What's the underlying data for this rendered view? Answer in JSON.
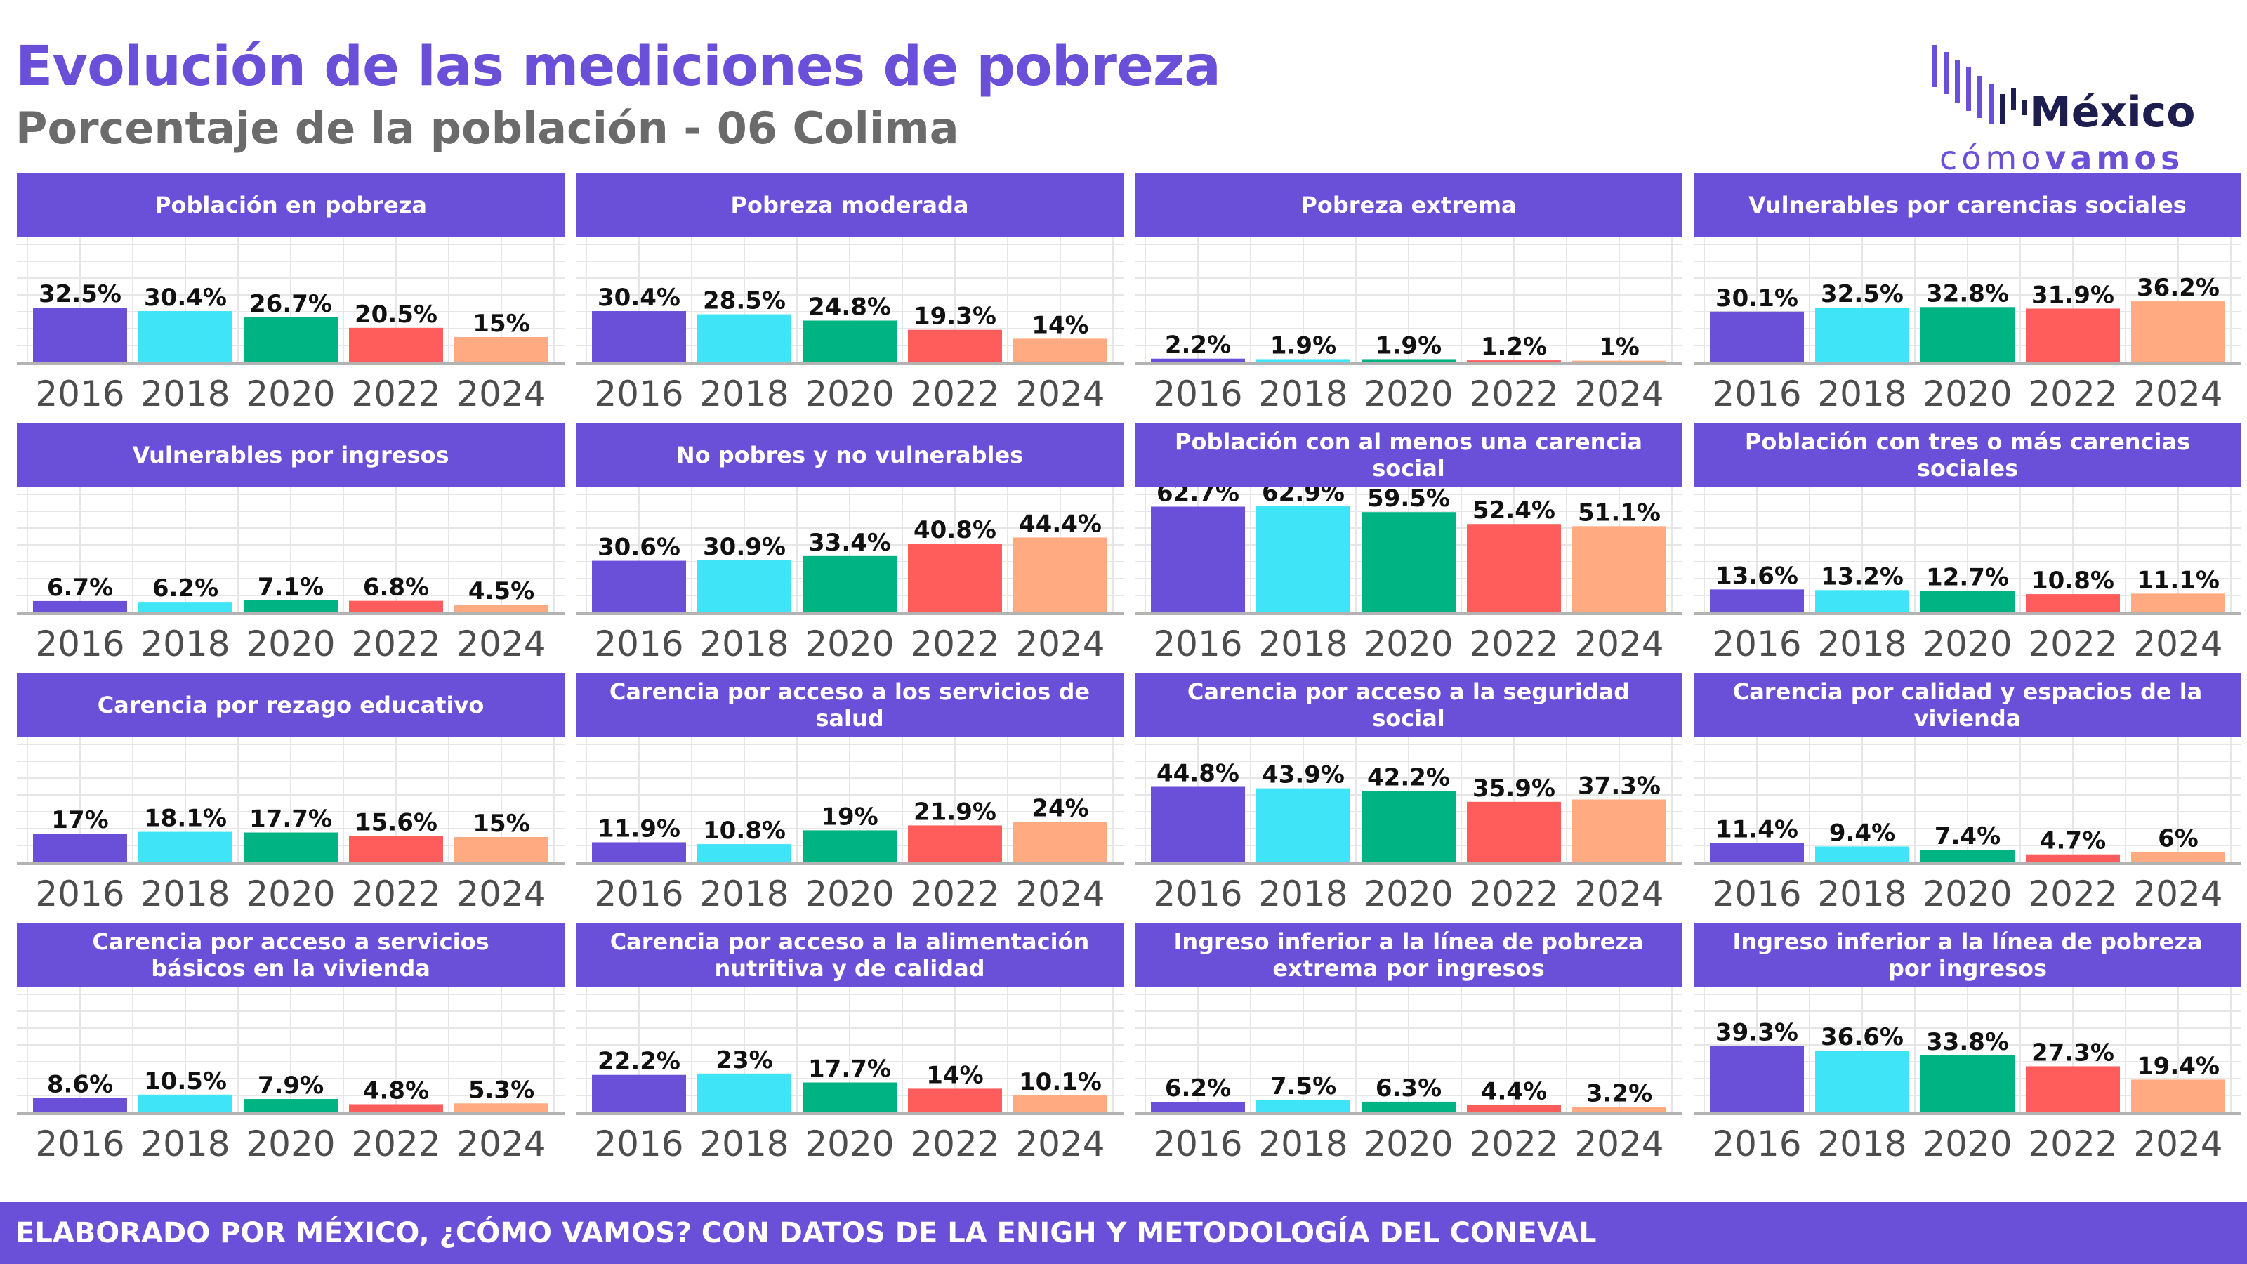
{
  "header": {
    "title": "Evolución de las mediciones de pobreza",
    "subtitle": "Porcentaje de la población - 06 Colima"
  },
  "logo": {
    "name": "México",
    "tagline_part1": "cómo",
    "tagline_part2": "vamos"
  },
  "footer": {
    "text": "ELABORADO POR MÉXICO, ¿CÓMO VAMOS? CON DATOS DE LA ENIGH Y METODOLOGÍA DEL CONEVAL"
  },
  "colors": {
    "accent": "#6A4FD8",
    "series": [
      "#6A4FD8",
      "#3FE5F7",
      "#00B383",
      "#FF5C5C",
      "#FFAA80"
    ],
    "grid": "#e6e6e6",
    "axis": "#b3b3b3"
  },
  "chart_data": [
    {
      "type": "bar",
      "title": "Población en pobreza",
      "categories": [
        "2016",
        "2018",
        "2020",
        "2022",
        "2024"
      ],
      "values": [
        32.5,
        30.4,
        26.7,
        20.5,
        15
      ],
      "labels": [
        "32.5%",
        "30.4%",
        "26.7%",
        "20.5%",
        "15%"
      ],
      "ylim": [
        0,
        80
      ]
    },
    {
      "type": "bar",
      "title": "Pobreza moderada",
      "categories": [
        "2016",
        "2018",
        "2020",
        "2022",
        "2024"
      ],
      "values": [
        30.4,
        28.5,
        24.8,
        19.3,
        14
      ],
      "labels": [
        "30.4%",
        "28.5%",
        "24.8%",
        "19.3%",
        "14%"
      ],
      "ylim": [
        0,
        80
      ]
    },
    {
      "type": "bar",
      "title": "Pobreza extrema",
      "categories": [
        "2016",
        "2018",
        "2020",
        "2022",
        "2024"
      ],
      "values": [
        2.2,
        1.9,
        1.9,
        1.2,
        1
      ],
      "labels": [
        "2.2%",
        "1.9%",
        "1.9%",
        "1.2%",
        "1%"
      ],
      "ylim": [
        0,
        80
      ]
    },
    {
      "type": "bar",
      "title": "Vulnerables por carencias sociales",
      "categories": [
        "2016",
        "2018",
        "2020",
        "2022",
        "2024"
      ],
      "values": [
        30.1,
        32.5,
        32.8,
        31.9,
        36.2
      ],
      "labels": [
        "30.1%",
        "32.5%",
        "32.8%",
        "31.9%",
        "36.2%"
      ],
      "ylim": [
        0,
        80
      ]
    },
    {
      "type": "bar",
      "title": "Vulnerables por ingresos",
      "categories": [
        "2016",
        "2018",
        "2020",
        "2022",
        "2024"
      ],
      "values": [
        6.7,
        6.2,
        7.1,
        6.8,
        4.5
      ],
      "labels": [
        "6.7%",
        "6.2%",
        "7.1%",
        "6.8%",
        "4.5%"
      ],
      "ylim": [
        0,
        80
      ]
    },
    {
      "type": "bar",
      "title": "No pobres y no vulnerables",
      "categories": [
        "2016",
        "2018",
        "2020",
        "2022",
        "2024"
      ],
      "values": [
        30.6,
        30.9,
        33.4,
        40.8,
        44.4
      ],
      "labels": [
        "30.6%",
        "30.9%",
        "33.4%",
        "40.8%",
        "44.4%"
      ],
      "ylim": [
        0,
        80
      ]
    },
    {
      "type": "bar",
      "title": "Población con al menos una carencia social",
      "categories": [
        "2016",
        "2018",
        "2020",
        "2022",
        "2024"
      ],
      "values": [
        62.7,
        62.9,
        59.5,
        52.4,
        51.1
      ],
      "labels": [
        "62.7%",
        "62.9%",
        "59.5%",
        "52.4%",
        "51.1%"
      ],
      "ylim": [
        0,
        80
      ]
    },
    {
      "type": "bar",
      "title": "Población con tres o más carencias sociales",
      "categories": [
        "2016",
        "2018",
        "2020",
        "2022",
        "2024"
      ],
      "values": [
        13.6,
        13.2,
        12.7,
        10.8,
        11.1
      ],
      "labels": [
        "13.6%",
        "13.2%",
        "12.7%",
        "10.8%",
        "11.1%"
      ],
      "ylim": [
        0,
        80
      ]
    },
    {
      "type": "bar",
      "title": "Carencia por rezago educativo",
      "categories": [
        "2016",
        "2018",
        "2020",
        "2022",
        "2024"
      ],
      "values": [
        17,
        18.1,
        17.7,
        15.6,
        15
      ],
      "labels": [
        "17%",
        "18.1%",
        "17.7%",
        "15.6%",
        "15%"
      ],
      "ylim": [
        0,
        80
      ]
    },
    {
      "type": "bar",
      "title": "Carencia por acceso a los servicios de salud",
      "categories": [
        "2016",
        "2018",
        "2020",
        "2022",
        "2024"
      ],
      "values": [
        11.9,
        10.8,
        19,
        21.9,
        24
      ],
      "labels": [
        "11.9%",
        "10.8%",
        "19%",
        "21.9%",
        "24%"
      ],
      "ylim": [
        0,
        80
      ]
    },
    {
      "type": "bar",
      "title": "Carencia por acceso a la seguridad social",
      "categories": [
        "2016",
        "2018",
        "2020",
        "2022",
        "2024"
      ],
      "values": [
        44.8,
        43.9,
        42.2,
        35.9,
        37.3
      ],
      "labels": [
        "44.8%",
        "43.9%",
        "42.2%",
        "35.9%",
        "37.3%"
      ],
      "ylim": [
        0,
        80
      ]
    },
    {
      "type": "bar",
      "title": "Carencia por calidad y espacios de la vivienda",
      "categories": [
        "2016",
        "2018",
        "2020",
        "2022",
        "2024"
      ],
      "values": [
        11.4,
        9.4,
        7.4,
        4.7,
        6
      ],
      "labels": [
        "11.4%",
        "9.4%",
        "7.4%",
        "4.7%",
        "6%"
      ],
      "ylim": [
        0,
        80
      ]
    },
    {
      "type": "bar",
      "title": "Carencia por acceso a servicios básicos en la vivienda",
      "categories": [
        "2016",
        "2018",
        "2020",
        "2022",
        "2024"
      ],
      "values": [
        8.6,
        10.5,
        7.9,
        4.8,
        5.3
      ],
      "labels": [
        "8.6%",
        "10.5%",
        "7.9%",
        "4.8%",
        "5.3%"
      ],
      "ylim": [
        0,
        80
      ]
    },
    {
      "type": "bar",
      "title": "Carencia por acceso a la alimentación nutritiva y de calidad",
      "categories": [
        "2016",
        "2018",
        "2020",
        "2022",
        "2024"
      ],
      "values": [
        22.2,
        23,
        17.7,
        14,
        10.1
      ],
      "labels": [
        "22.2%",
        "23%",
        "17.7%",
        "14%",
        "10.1%"
      ],
      "ylim": [
        0,
        80
      ]
    },
    {
      "type": "bar",
      "title": "Ingreso inferior a la línea de pobreza extrema por ingresos",
      "categories": [
        "2016",
        "2018",
        "2020",
        "2022",
        "2024"
      ],
      "values": [
        6.2,
        7.5,
        6.3,
        4.4,
        3.2
      ],
      "labels": [
        "6.2%",
        "7.5%",
        "6.3%",
        "4.4%",
        "3.2%"
      ],
      "ylim": [
        0,
        80
      ]
    },
    {
      "type": "bar",
      "title": "Ingreso inferior a la línea de pobreza por ingresos",
      "categories": [
        "2016",
        "2018",
        "2020",
        "2022",
        "2024"
      ],
      "values": [
        39.3,
        36.6,
        33.8,
        27.3,
        19.4
      ],
      "labels": [
        "39.3%",
        "36.6%",
        "33.8%",
        "27.3%",
        "19.4%"
      ],
      "ylim": [
        0,
        80
      ]
    }
  ]
}
